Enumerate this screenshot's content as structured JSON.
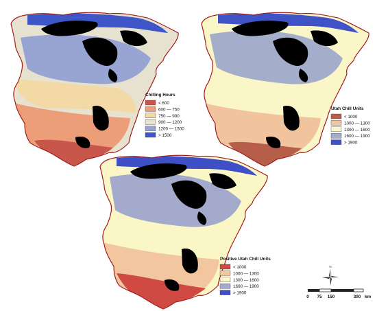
{
  "maps": [
    {
      "legend": {
        "title": "Chilling Hours",
        "classes": [
          {
            "label": "< 600",
            "color": "#c8564a"
          },
          {
            "label": "600 — 750",
            "color": "#ec9e78"
          },
          {
            "label": "750 — 900",
            "color": "#f2d9a5"
          },
          {
            "label": "900 — 1200",
            "color": "#e6e2cf"
          },
          {
            "label": "1200 — 1500",
            "color": "#98a4d2"
          },
          {
            "label": "> 1500",
            "color": "#3e56c8"
          }
        ]
      }
    },
    {
      "legend": {
        "title": "Utah Chill Units",
        "classes": [
          {
            "label": "< 1000",
            "color": "#b65e4a"
          },
          {
            "label": "1000 — 1300",
            "color": "#f2c49e"
          },
          {
            "label": "1300 — 1600",
            "color": "#fbf6c8"
          },
          {
            "label": "1600 — 1900",
            "color": "#a4adca"
          },
          {
            "label": "> 1900",
            "color": "#3f52c6"
          }
        ]
      }
    },
    {
      "legend": {
        "title": "Positive Utah Chill Units",
        "classes": [
          {
            "label": "< 1000",
            "color": "#cf4a42"
          },
          {
            "label": "1000 — 1300",
            "color": "#f2c79f"
          },
          {
            "label": "1300 — 1600",
            "color": "#fbf6c6"
          },
          {
            "label": "1600 — 1900",
            "color": "#a3aacb"
          },
          {
            "label": "> 1900",
            "color": "#3f4fc6"
          }
        ]
      }
    }
  ],
  "north_arrow": {
    "label": "N"
  },
  "scale_bar": {
    "ticks": [
      "0",
      "75",
      "150",
      "300"
    ],
    "unit": "km"
  },
  "colors": {
    "mountains": "#000000",
    "coast_border": "#a01c1c"
  }
}
